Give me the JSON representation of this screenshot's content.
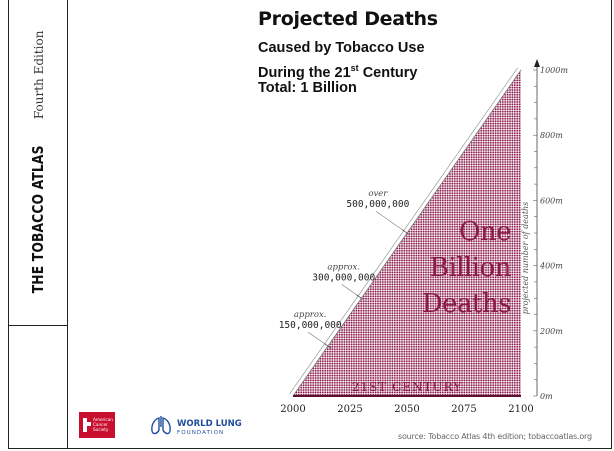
{
  "sidebar": {
    "book_title": "THE TOBACCO ATLAS",
    "edition": "Fourth Edition"
  },
  "header": {
    "title": "Projected Deaths",
    "subtitle_line1": "Caused by Tobacco Use",
    "subtitle_line2_pre": "During the 21",
    "subtitle_line2_sup": "st",
    "subtitle_line2_post": " Century",
    "subtitle_line3": "Total: 1 Billion"
  },
  "chart_data": {
    "type": "area",
    "x": [
      2000,
      2025,
      2050,
      2075,
      2100
    ],
    "x_tick_labels": [
      "2000",
      "2025",
      "2050",
      "2075",
      "2100"
    ],
    "series": [
      {
        "values": [
          0,
          250,
          500,
          750,
          1000
        ]
      }
    ],
    "ylim": [
      0,
      1000
    ],
    "y_ticks": [
      0,
      200,
      400,
      600,
      800,
      1000
    ],
    "y_tick_labels": [
      "0m",
      "200m",
      "400m",
      "600m",
      "800m",
      "1000m"
    ],
    "ylabel": "projected number of deaths",
    "area_text": [
      "One",
      "Billion",
      "Deaths"
    ],
    "band_text": "21ST CENTURY",
    "annotations": [
      {
        "x": 2016,
        "y": 150,
        "prefix": "approx.",
        "value": "150,000,000"
      },
      {
        "x": 2030,
        "y": 300,
        "prefix": "approx.",
        "value": "300,000,000"
      },
      {
        "x": 2050,
        "y": 500,
        "prefix": "over",
        "value": "500,000,000"
      }
    ],
    "fill_color": "#8b1a4a",
    "grid": false
  },
  "logos": {
    "acs_text": "American Cancer Society",
    "wlf_line1": "WORLD LUNG",
    "wlf_line2": "FOUNDATION"
  },
  "source": "source: Tobacco Atlas 4th edition; tobaccoatlas.org",
  "colors": {
    "accent": "#8b1a4a",
    "acs_red": "#c8102e",
    "wlf_blue": "#1f4e9c"
  }
}
